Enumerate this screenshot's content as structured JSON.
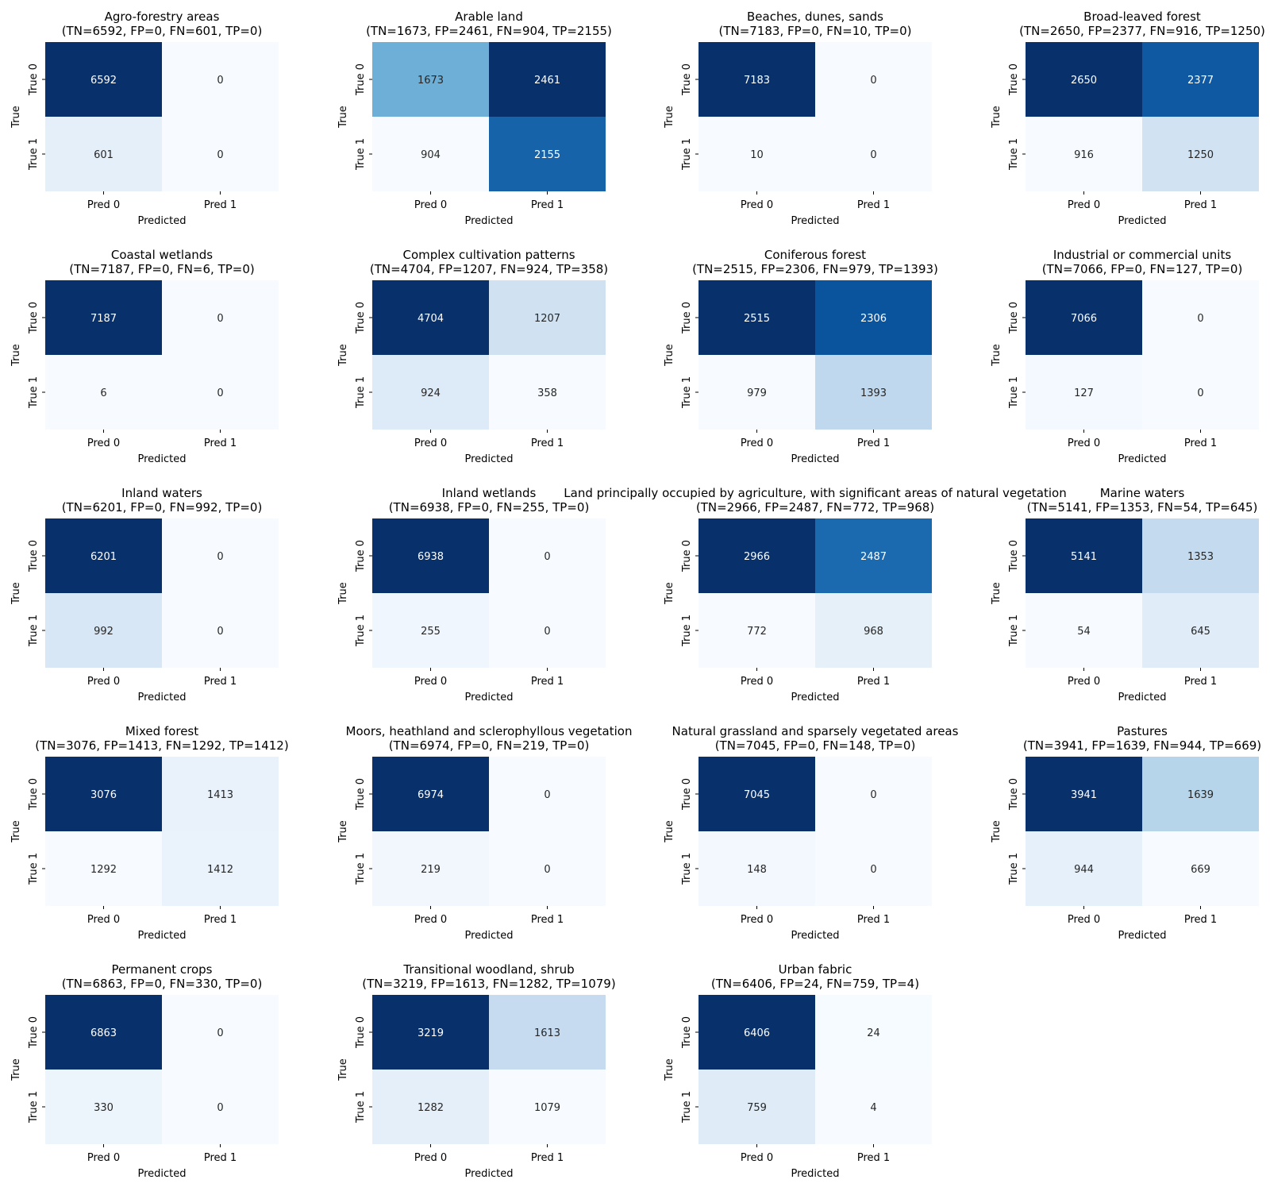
{
  "chart_data": [
    {
      "type": "heatmap",
      "title": "Agro-forestry areas",
      "subtitle": "(TN=6592, FP=0, FN=601, TP=0)",
      "xlabel": "Predicted",
      "ylabel": "True",
      "x_ticks": [
        "Pred 0",
        "Pred 1"
      ],
      "y_ticks": [
        "True 0",
        "True 1"
      ],
      "values": [
        [
          6592,
          0
        ],
        [
          601,
          0
        ]
      ],
      "colormap": "Blues"
    },
    {
      "type": "heatmap",
      "title": "Arable land",
      "subtitle": "(TN=1673, FP=2461, FN=904, TP=2155)",
      "xlabel": "Predicted",
      "ylabel": "True",
      "x_ticks": [
        "Pred 0",
        "Pred 1"
      ],
      "y_ticks": [
        "True 0",
        "True 1"
      ],
      "values": [
        [
          1673,
          2461
        ],
        [
          904,
          2155
        ]
      ],
      "colormap": "Blues"
    },
    {
      "type": "heatmap",
      "title": "Beaches, dunes, sands",
      "subtitle": "(TN=7183, FP=0, FN=10, TP=0)",
      "xlabel": "Predicted",
      "ylabel": "True",
      "x_ticks": [
        "Pred 0",
        "Pred 1"
      ],
      "y_ticks": [
        "True 0",
        "True 1"
      ],
      "values": [
        [
          7183,
          0
        ],
        [
          10,
          0
        ]
      ],
      "colormap": "Blues"
    },
    {
      "type": "heatmap",
      "title": "Broad-leaved forest",
      "subtitle": "(TN=2650, FP=2377, FN=916, TP=1250)",
      "xlabel": "Predicted",
      "ylabel": "True",
      "x_ticks": [
        "Pred 0",
        "Pred 1"
      ],
      "y_ticks": [
        "True 0",
        "True 1"
      ],
      "values": [
        [
          2650,
          2377
        ],
        [
          916,
          1250
        ]
      ],
      "colormap": "Blues"
    },
    {
      "type": "heatmap",
      "title": "Coastal wetlands",
      "subtitle": "(TN=7187, FP=0, FN=6, TP=0)",
      "xlabel": "Predicted",
      "ylabel": "True",
      "x_ticks": [
        "Pred 0",
        "Pred 1"
      ],
      "y_ticks": [
        "True 0",
        "True 1"
      ],
      "values": [
        [
          7187,
          0
        ],
        [
          6,
          0
        ]
      ],
      "colormap": "Blues"
    },
    {
      "type": "heatmap",
      "title": "Complex cultivation patterns",
      "subtitle": "(TN=4704, FP=1207, FN=924, TP=358)",
      "xlabel": "Predicted",
      "ylabel": "True",
      "x_ticks": [
        "Pred 0",
        "Pred 1"
      ],
      "y_ticks": [
        "True 0",
        "True 1"
      ],
      "values": [
        [
          4704,
          1207
        ],
        [
          924,
          358
        ]
      ],
      "colormap": "Blues"
    },
    {
      "type": "heatmap",
      "title": "Coniferous forest",
      "subtitle": "(TN=2515, FP=2306, FN=979, TP=1393)",
      "xlabel": "Predicted",
      "ylabel": "True",
      "x_ticks": [
        "Pred 0",
        "Pred 1"
      ],
      "y_ticks": [
        "True 0",
        "True 1"
      ],
      "values": [
        [
          2515,
          2306
        ],
        [
          979,
          1393
        ]
      ],
      "colormap": "Blues"
    },
    {
      "type": "heatmap",
      "title": "Industrial or commercial units",
      "subtitle": "(TN=7066, FP=0, FN=127, TP=0)",
      "xlabel": "Predicted",
      "ylabel": "True",
      "x_ticks": [
        "Pred 0",
        "Pred 1"
      ],
      "y_ticks": [
        "True 0",
        "True 1"
      ],
      "values": [
        [
          7066,
          0
        ],
        [
          127,
          0
        ]
      ],
      "colormap": "Blues"
    },
    {
      "type": "heatmap",
      "title": "Inland waters",
      "subtitle": "(TN=6201, FP=0, FN=992, TP=0)",
      "xlabel": "Predicted",
      "ylabel": "True",
      "x_ticks": [
        "Pred 0",
        "Pred 1"
      ],
      "y_ticks": [
        "True 0",
        "True 1"
      ],
      "values": [
        [
          6201,
          0
        ],
        [
          992,
          0
        ]
      ],
      "colormap": "Blues"
    },
    {
      "type": "heatmap",
      "title": "Inland wetlands",
      "subtitle": "(TN=6938, FP=0, FN=255, TP=0)",
      "xlabel": "Predicted",
      "ylabel": "True",
      "x_ticks": [
        "Pred 0",
        "Pred 1"
      ],
      "y_ticks": [
        "True 0",
        "True 1"
      ],
      "values": [
        [
          6938,
          0
        ],
        [
          255,
          0
        ]
      ],
      "colormap": "Blues"
    },
    {
      "type": "heatmap",
      "title": "Land principally occupied by agriculture, with significant areas of natural vegetation",
      "subtitle": "(TN=2966, FP=2487, FN=772, TP=968)",
      "xlabel": "Predicted",
      "ylabel": "True",
      "x_ticks": [
        "Pred 0",
        "Pred 1"
      ],
      "y_ticks": [
        "True 0",
        "True 1"
      ],
      "values": [
        [
          2966,
          2487
        ],
        [
          772,
          968
        ]
      ],
      "colormap": "Blues"
    },
    {
      "type": "heatmap",
      "title": "Marine waters",
      "subtitle": "(TN=5141, FP=1353, FN=54, TP=645)",
      "xlabel": "Predicted",
      "ylabel": "True",
      "x_ticks": [
        "Pred 0",
        "Pred 1"
      ],
      "y_ticks": [
        "True 0",
        "True 1"
      ],
      "values": [
        [
          5141,
          1353
        ],
        [
          54,
          645
        ]
      ],
      "colormap": "Blues"
    },
    {
      "type": "heatmap",
      "title": "Mixed forest",
      "subtitle": "(TN=3076, FP=1413, FN=1292, TP=1412)",
      "xlabel": "Predicted",
      "ylabel": "True",
      "x_ticks": [
        "Pred 0",
        "Pred 1"
      ],
      "y_ticks": [
        "True 0",
        "True 1"
      ],
      "values": [
        [
          3076,
          1413
        ],
        [
          1292,
          1412
        ]
      ],
      "colormap": "Blues"
    },
    {
      "type": "heatmap",
      "title": "Moors, heathland and sclerophyllous vegetation",
      "subtitle": "(TN=6974, FP=0, FN=219, TP=0)",
      "xlabel": "Predicted",
      "ylabel": "True",
      "x_ticks": [
        "Pred 0",
        "Pred 1"
      ],
      "y_ticks": [
        "True 0",
        "True 1"
      ],
      "values": [
        [
          6974,
          0
        ],
        [
          219,
          0
        ]
      ],
      "colormap": "Blues"
    },
    {
      "type": "heatmap",
      "title": "Natural grassland and sparsely vegetated areas",
      "subtitle": "(TN=7045, FP=0, FN=148, TP=0)",
      "xlabel": "Predicted",
      "ylabel": "True",
      "x_ticks": [
        "Pred 0",
        "Pred 1"
      ],
      "y_ticks": [
        "True 0",
        "True 1"
      ],
      "values": [
        [
          7045,
          0
        ],
        [
          148,
          0
        ]
      ],
      "colormap": "Blues"
    },
    {
      "type": "heatmap",
      "title": "Pastures",
      "subtitle": "(TN=3941, FP=1639, FN=944, TP=669)",
      "xlabel": "Predicted",
      "ylabel": "True",
      "x_ticks": [
        "Pred 0",
        "Pred 1"
      ],
      "y_ticks": [
        "True 0",
        "True 1"
      ],
      "values": [
        [
          3941,
          1639
        ],
        [
          944,
          669
        ]
      ],
      "colormap": "Blues"
    },
    {
      "type": "heatmap",
      "title": "Permanent crops",
      "subtitle": "(TN=6863, FP=0, FN=330, TP=0)",
      "xlabel": "Predicted",
      "ylabel": "True",
      "x_ticks": [
        "Pred 0",
        "Pred 1"
      ],
      "y_ticks": [
        "True 0",
        "True 1"
      ],
      "values": [
        [
          6863,
          0
        ],
        [
          330,
          0
        ]
      ],
      "colormap": "Blues"
    },
    {
      "type": "heatmap",
      "title": "Transitional woodland, shrub",
      "subtitle": "(TN=3219, FP=1613, FN=1282, TP=1079)",
      "xlabel": "Predicted",
      "ylabel": "True",
      "x_ticks": [
        "Pred 0",
        "Pred 1"
      ],
      "y_ticks": [
        "True 0",
        "True 1"
      ],
      "values": [
        [
          3219,
          1613
        ],
        [
          1282,
          1079
        ]
      ],
      "colormap": "Blues"
    },
    {
      "type": "heatmap",
      "title": "Urban fabric",
      "subtitle": "(TN=6406, FP=24, FN=759, TP=4)",
      "xlabel": "Predicted",
      "ylabel": "True",
      "x_ticks": [
        "Pred 0",
        "Pred 1"
      ],
      "y_ticks": [
        "True 0",
        "True 1"
      ],
      "values": [
        [
          6406,
          24
        ],
        [
          759,
          4
        ]
      ],
      "colormap": "Blues"
    }
  ]
}
